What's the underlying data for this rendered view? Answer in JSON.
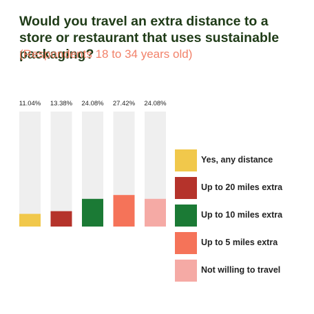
{
  "title": "Would you travel an extra distance to a store or restaurant that uses sustainable packaging?",
  "subtitle": "(Respondents 18 to 34 years old)",
  "chart_data": {
    "type": "bar",
    "categories": [
      "Yes, any distance",
      "Up to 20 miles extra",
      "Up to 10 miles extra",
      "Up to 5 miles extra",
      "Not willing to travel"
    ],
    "values": [
      11.04,
      13.38,
      24.08,
      27.42,
      24.08
    ],
    "value_labels": [
      "11.04%",
      "13.38%",
      "24.08%",
      "27.42%",
      "24.08%"
    ],
    "colors": [
      "#f1c84b",
      "#b5332b",
      "#1b7a35",
      "#f57359",
      "#f5aaa5"
    ],
    "track_color": "#efefef",
    "ylim": [
      0,
      100
    ],
    "legend": "right",
    "grid": false
  },
  "legend": [
    {
      "label": "Yes, any distance",
      "color": "#f1c84b"
    },
    {
      "label": "Up to 20 miles extra",
      "color": "#b5332b"
    },
    {
      "label": "Up to 10 miles extra",
      "color": "#1b7a35"
    },
    {
      "label": "Up to 5 miles extra",
      "color": "#f57359"
    },
    {
      "label": "Not willing to travel",
      "color": "#f5aaa5"
    }
  ]
}
